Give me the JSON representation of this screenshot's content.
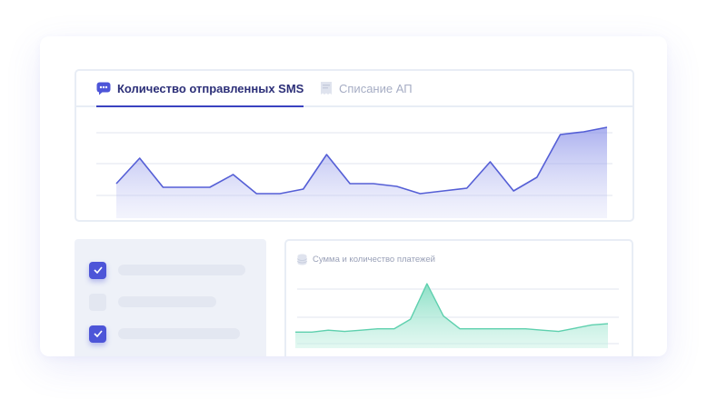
{
  "tabs": [
    {
      "label": "Количество отправленных SMS",
      "active": true,
      "icon": "chat-bubble-icon"
    },
    {
      "label": "Списание АП",
      "active": false,
      "icon": "receipt-icon"
    }
  ],
  "checklist": [
    {
      "checked": true
    },
    {
      "checked": false
    },
    {
      "checked": true
    }
  ],
  "payments_card": {
    "title": "Сумма и количество платежей",
    "icon": "coins-stack-icon"
  },
  "colors": {
    "accent": "#4d55d8",
    "sms_line": "#555fd6",
    "payments_fill": "#7fdcc0",
    "payments_line": "#5ed0ae"
  },
  "chart_data": [
    {
      "type": "area",
      "x": [
        0,
        1,
        2,
        3,
        4,
        5,
        6,
        7,
        8,
        9,
        10,
        11,
        12,
        13,
        14,
        15,
        16,
        17,
        18,
        19,
        20,
        21
      ],
      "values": [
        38,
        66,
        34,
        34,
        34,
        48,
        27,
        27,
        32,
        70,
        38,
        38,
        35,
        27,
        30,
        33,
        62,
        30,
        45,
        92,
        95,
        100
      ],
      "ylim": [
        0,
        110
      ],
      "grid": true
    },
    {
      "type": "area",
      "x": [
        0,
        1,
        2,
        3,
        4,
        5,
        6,
        7,
        8,
        9,
        10,
        11,
        12,
        13,
        14,
        15,
        16,
        17,
        18,
        19
      ],
      "values": [
        25,
        25,
        28,
        26,
        28,
        30,
        30,
        45,
        100,
        50,
        30,
        30,
        30,
        30,
        30,
        28,
        26,
        31,
        36,
        38
      ],
      "ylim": [
        0,
        110
      ],
      "grid": true
    }
  ]
}
